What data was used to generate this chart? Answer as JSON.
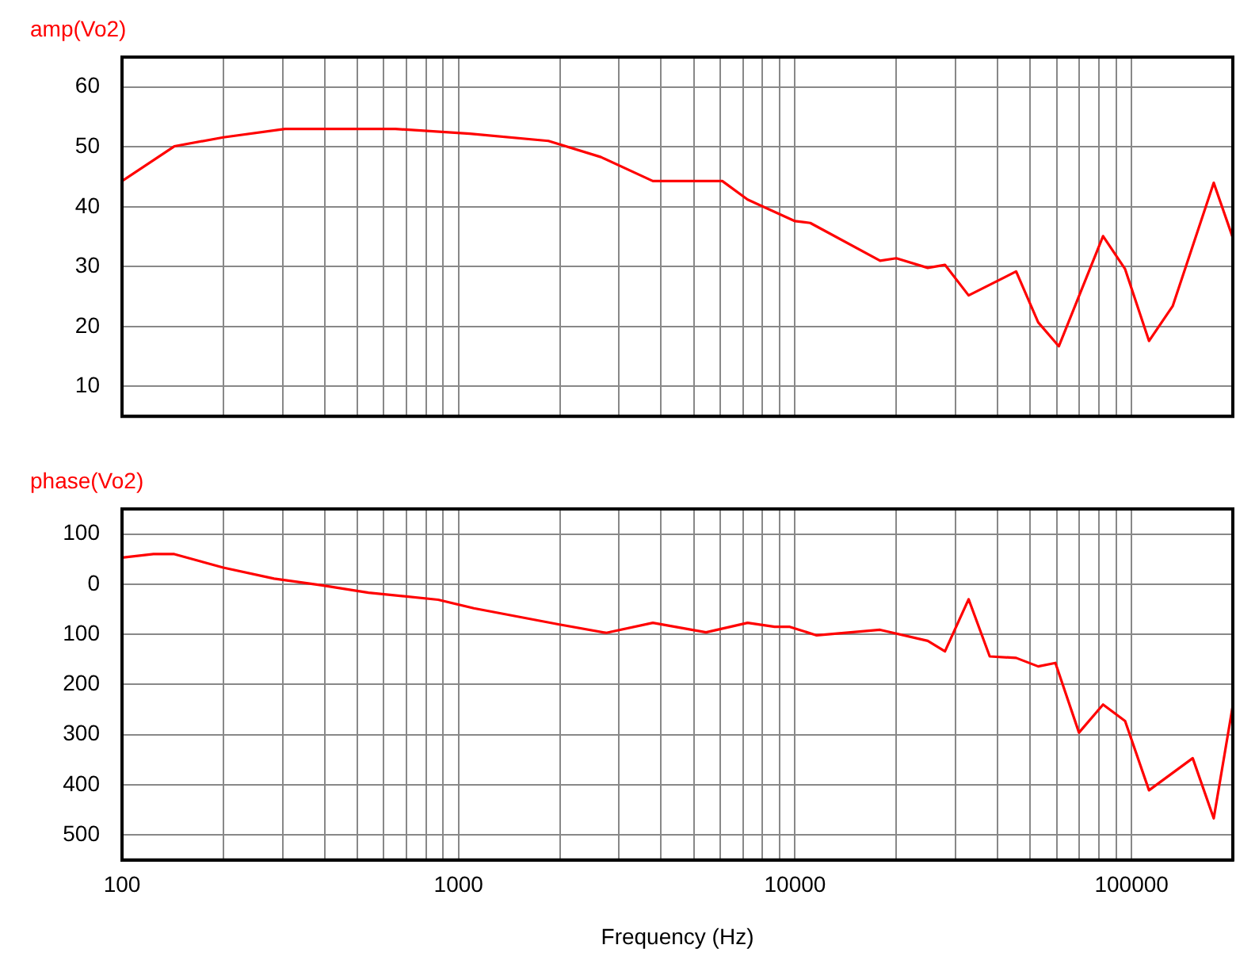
{
  "chart_data": [
    {
      "type": "line",
      "log": "x",
      "grid": true,
      "legend": "top left",
      "tick_labels": "y",
      "xlim": [
        100,
        200000
      ],
      "xticks": [
        100,
        {
          "value": 200,
          "label": null
        },
        {
          "value": 300,
          "label": null
        },
        {
          "value": 400,
          "label": null
        },
        {
          "value": 500,
          "label": null
        },
        {
          "value": 600,
          "label": null
        },
        {
          "value": 700,
          "label": null
        },
        {
          "value": 800,
          "label": null
        },
        {
          "value": 900,
          "label": null
        },
        1000,
        {
          "value": 2000,
          "label": null
        },
        {
          "value": 3000,
          "label": null
        },
        {
          "value": 4000,
          "label": null
        },
        {
          "value": 5000,
          "label": null
        },
        {
          "value": 6000,
          "label": null
        },
        {
          "value": 7000,
          "label": null
        },
        {
          "value": 8000,
          "label": null
        },
        {
          "value": 9000,
          "label": null
        },
        10000,
        {
          "value": 20000,
          "label": null
        },
        {
          "value": 30000,
          "label": null
        },
        {
          "value": 40000,
          "label": null
        },
        {
          "value": 50000,
          "label": null
        },
        {
          "value": 60000,
          "label": null
        },
        {
          "value": 70000,
          "label": null
        },
        {
          "value": 80000,
          "label": null
        },
        {
          "value": 90000,
          "label": null
        },
        100000
      ],
      "ylim": [
        5,
        65
      ],
      "yticks": [
        10,
        20,
        30,
        40,
        50,
        60
      ],
      "series": [
        {
          "name": "amp(Vo2)",
          "color": "#ff0000",
          "x": [
            100,
            143,
            200,
            305,
            649,
            1080,
            1850,
            2650,
            3780,
            6080,
            7230,
            10000,
            11100,
            17900,
            20000,
            24800,
            27900,
            32800,
            45400,
            52800,
            60800,
            82300,
            95700,
            112700,
            132500,
            175500,
            199500
          ],
          "values": [
            44.3,
            50.1,
            51.6,
            53,
            53,
            52.2,
            51,
            48.3,
            44.3,
            44.3,
            41.2,
            37.6,
            37.3,
            31,
            31.4,
            29.8,
            30.3,
            25.2,
            29.2,
            20.7,
            16.7,
            35.1,
            29.6,
            17.6,
            23.4,
            44,
            35
          ]
        }
      ]
    },
    {
      "type": "line",
      "log": "x",
      "grid": true,
      "legend": "top left",
      "xlabel": "Frequency (Hz)",
      "xlim": [
        100,
        200000
      ],
      "xticks": [
        100,
        {
          "value": 200,
          "label": null
        },
        {
          "value": 300,
          "label": null
        },
        {
          "value": 400,
          "label": null
        },
        {
          "value": 500,
          "label": null
        },
        {
          "value": 600,
          "label": null
        },
        {
          "value": 700,
          "label": null
        },
        {
          "value": 800,
          "label": null
        },
        {
          "value": 900,
          "label": null
        },
        1000,
        {
          "value": 2000,
          "label": null
        },
        {
          "value": 3000,
          "label": null
        },
        {
          "value": 4000,
          "label": null
        },
        {
          "value": 5000,
          "label": null
        },
        {
          "value": 6000,
          "label": null
        },
        {
          "value": 7000,
          "label": null
        },
        {
          "value": 8000,
          "label": null
        },
        {
          "value": 9000,
          "label": null
        },
        10000,
        {
          "value": 20000,
          "label": null
        },
        {
          "value": 30000,
          "label": null
        },
        {
          "value": 40000,
          "label": null
        },
        {
          "value": 50000,
          "label": null
        },
        {
          "value": 60000,
          "label": null
        },
        {
          "value": 70000,
          "label": null
        },
        {
          "value": 80000,
          "label": null
        },
        {
          "value": 90000,
          "label": null
        },
        100000
      ],
      "ylim": [
        -550,
        150
      ],
      "yticks": [
        100,
        0,
        {
          "value": -100,
          "label": "100"
        },
        {
          "value": -200,
          "label": "200"
        },
        {
          "value": -300,
          "label": "300"
        },
        {
          "value": -400,
          "label": "400"
        },
        {
          "value": -500,
          "label": "500"
        }
      ],
      "series": [
        {
          "name": "phase(Vo2)",
          "color": "#ff0000",
          "x": [
            100,
            124,
            143,
            200,
            283,
            390,
            540,
            870,
            1110,
            1980,
            2750,
            3780,
            5440,
            7230,
            8700,
            9650,
            11600,
            17900,
            24800,
            27900,
            32800,
            37900,
            45400,
            52800,
            59400,
            69800,
            82300,
            95700,
            112700,
            152000,
            175500,
            199500
          ],
          "values": [
            53,
            60,
            60,
            33,
            11,
            -2,
            -17,
            -31,
            -48,
            -80,
            -97,
            -77,
            -96,
            -77,
            -85,
            -85,
            -102,
            -91,
            -113,
            -134,
            -30,
            -144,
            -147,
            -164,
            -157,
            -296,
            -240,
            -273,
            -411,
            -347,
            -467,
            -246
          ]
        }
      ]
    }
  ]
}
